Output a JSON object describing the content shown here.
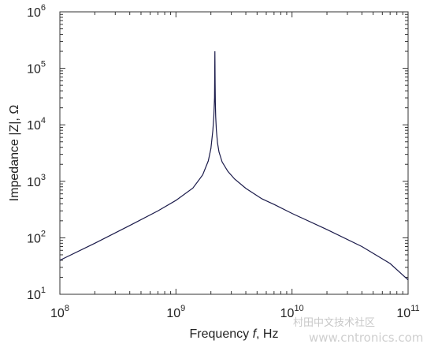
{
  "chart_data": {
    "type": "line",
    "title": "",
    "xlabel": "Frequency",
    "xlabel_var": "f",
    "xlabel_unit": ", Hz",
    "ylabel": "Impedance |Z|, Ω",
    "x_scale": "log",
    "y_scale": "log",
    "xlim": [
      100000000.0,
      100000000000.0
    ],
    "ylim": [
      10,
      1000000.0
    ],
    "grid": false,
    "x_ticks": [
      {
        "base": "10",
        "exp": "8"
      },
      {
        "base": "10",
        "exp": "9"
      },
      {
        "base": "10",
        "exp": "10"
      },
      {
        "base": "10",
        "exp": "11"
      }
    ],
    "y_ticks": [
      {
        "base": "10",
        "exp": "1"
      },
      {
        "base": "10",
        "exp": "2"
      },
      {
        "base": "10",
        "exp": "3"
      },
      {
        "base": "10",
        "exp": "4"
      },
      {
        "base": "10",
        "exp": "5"
      },
      {
        "base": "10",
        "exp": "6"
      }
    ],
    "series": [
      {
        "color": "#1a1a4a",
        "x": [
          100000000.0,
          200000000.0,
          400000000.0,
          700000000.0,
          1000000000.0,
          1400000000.0,
          1700000000.0,
          1900000000.0,
          2000000000.0,
          2080000000.0,
          2120000000.0,
          2150000000.0,
          2165000000.0,
          2175000000.0,
          2185000000.0,
          2200000000.0,
          2230000000.0,
          2280000000.0,
          2350000000.0,
          2500000000.0,
          2800000000.0,
          3200000000.0,
          4000000000.0,
          5500000000.0,
          7000000000.0,
          10000000000.0,
          20000000000.0,
          40000000000.0,
          70000000000.0,
          100000000000.0
        ],
        "y": [
          40,
          80,
          165,
          300,
          460,
          760,
          1300,
          2300,
          3800,
          8000,
          14000,
          30000,
          200000,
          60000,
          25000,
          14000,
          8000,
          4800,
          3300,
          2200,
          1500,
          1100,
          750,
          490,
          390,
          270,
          140,
          70,
          35,
          18
        ]
      }
    ]
  },
  "watermark": {
    "brand": "村田中文技术社区",
    "site": "www.cntronics.com"
  }
}
